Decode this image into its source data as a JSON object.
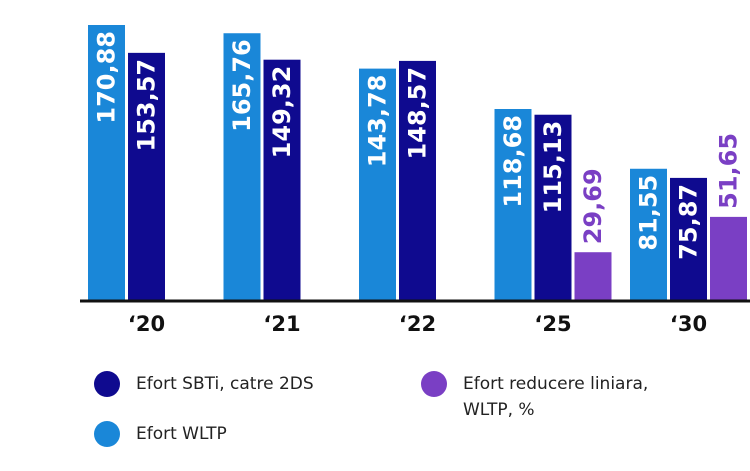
{
  "chart_data": {
    "type": "bar",
    "categories": [
      "‘20",
      "‘21",
      "‘22",
      "‘25",
      "‘30"
    ],
    "series": [
      {
        "name": "Efort WLTP",
        "color": "#1a87d8",
        "values": [
          170.88,
          165.76,
          143.78,
          118.68,
          81.55
        ],
        "value_labels": [
          "170,88",
          "165,76",
          "143,78",
          "118,68",
          "81,55"
        ]
      },
      {
        "name": "Efort SBTi, catre 2DS",
        "color": "#0f0a8f",
        "values": [
          153.57,
          149.32,
          148.57,
          115.13,
          75.87
        ],
        "value_labels": [
          "153,57",
          "149,32",
          "148,57",
          "115,13",
          "75,87"
        ]
      },
      {
        "name": "Efort reducere liniara, WLTP, %",
        "color": "#7a3fc4",
        "values": [
          null,
          null,
          null,
          29.69,
          51.65
        ],
        "value_labels": [
          null,
          null,
          null,
          "29,69",
          "51,65"
        ]
      }
    ]
  }
}
